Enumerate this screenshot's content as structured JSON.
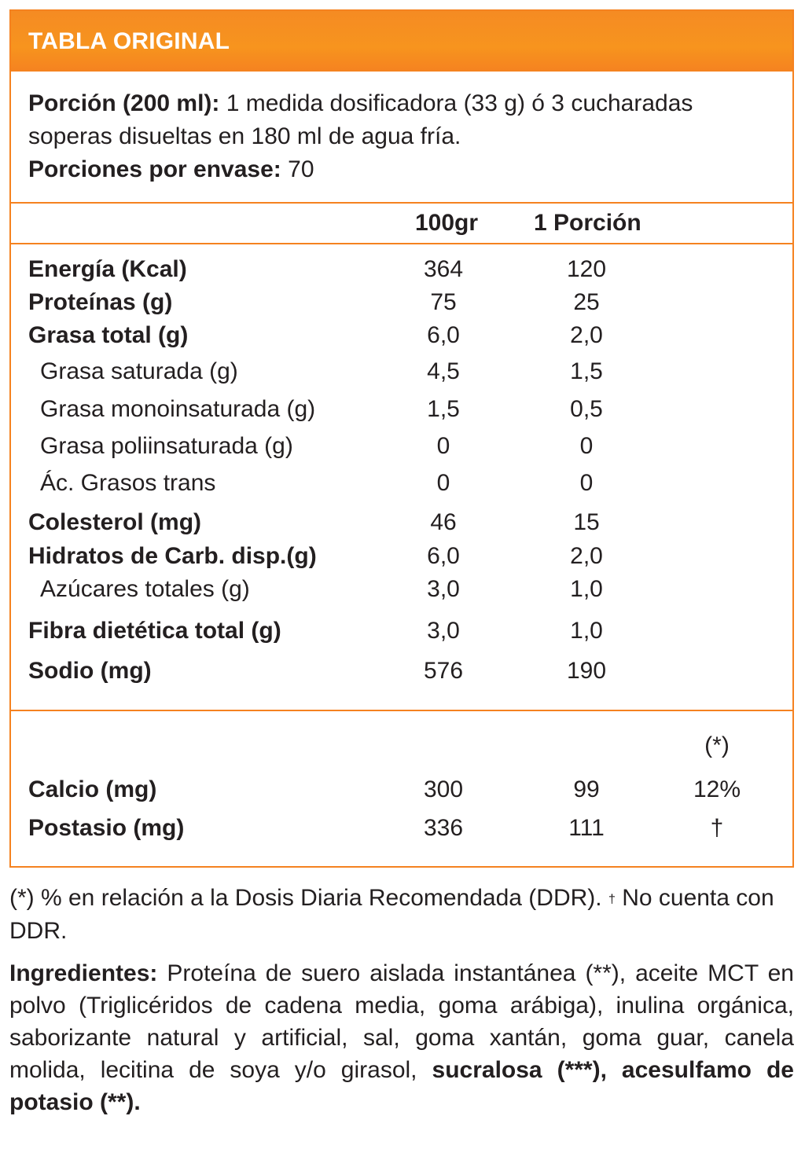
{
  "header": {
    "title": "TABLA ORIGINAL"
  },
  "serving": {
    "portion_label": "Porción (200 ml):",
    "portion_text_1": " 1 medida dosificadora (33 g) ó 3 cucharadas",
    "portion_text_2": "soperas disueltas en 180 ml de agua fría.",
    "servings_label": "Porciones por envase:",
    "servings_value": " 70"
  },
  "columns": {
    "col1": "100gr",
    "col2": "1 Porción"
  },
  "nutrients": [
    {
      "label": "Energía (Kcal)",
      "v100": "364",
      "vportion": "120"
    },
    {
      "label": "Proteínas (g)",
      "v100": "75",
      "vportion": "25"
    },
    {
      "label": "Grasa total (g)",
      "v100": "6,0",
      "vportion": "2,0"
    },
    {
      "label": "Grasa saturada (g)",
      "v100": "4,5",
      "vportion": "1,5"
    },
    {
      "label": "Grasa monoinsaturada (g)",
      "v100": "1,5",
      "vportion": "0,5"
    },
    {
      "label": "Grasa poliinsaturada (g)",
      "v100": "0",
      "vportion": "0"
    },
    {
      "label": "Ác. Grasos trans",
      "v100": "0",
      "vportion": "0"
    },
    {
      "label": "Colesterol (mg)",
      "v100": "46",
      "vportion": "15"
    },
    {
      "label": "Hidratos de Carb. disp.(g)",
      "v100": "6,0",
      "vportion": "2,0"
    },
    {
      "label": "Azúcares totales (g)",
      "v100": "3,0",
      "vportion": "1,0"
    },
    {
      "label": "Fibra dietética total (g)",
      "v100": "3,0",
      "vportion": "1,0"
    },
    {
      "label": "Sodio (mg)",
      "v100": "576",
      "vportion": "190"
    }
  ],
  "minerals": {
    "ddr_header": "(*)",
    "rows": [
      {
        "label": "Calcio (mg)",
        "v100": "300",
        "vportion": "99",
        "ddr": "12%"
      },
      {
        "label": "Postasio (mg)",
        "v100": "336",
        "vportion": "111",
        "ddr": "†"
      }
    ]
  },
  "footnote": {
    "text_1": "(*) % en relación a la Dosis Diaria Recomendada (DDR). ",
    "dagger": "†",
    "text_2": " No cuenta con DDR."
  },
  "ingredients": {
    "label": "Ingredientes:",
    "text": " Proteína de suero aislada instantánea (**), aceite MCT en polvo (Triglicéridos de cadena media, goma arábiga), inulina orgánica, saborizante natural y artificial, sal, goma xantán, goma guar, canela molida, lecitina de soya y/o girasol, ",
    "bold_tail": "sucralosa (***), acesulfamo de potasio (**)."
  },
  "colors": {
    "accent": "#f58220",
    "text": "#231f20",
    "header_text": "#ffffff"
  }
}
